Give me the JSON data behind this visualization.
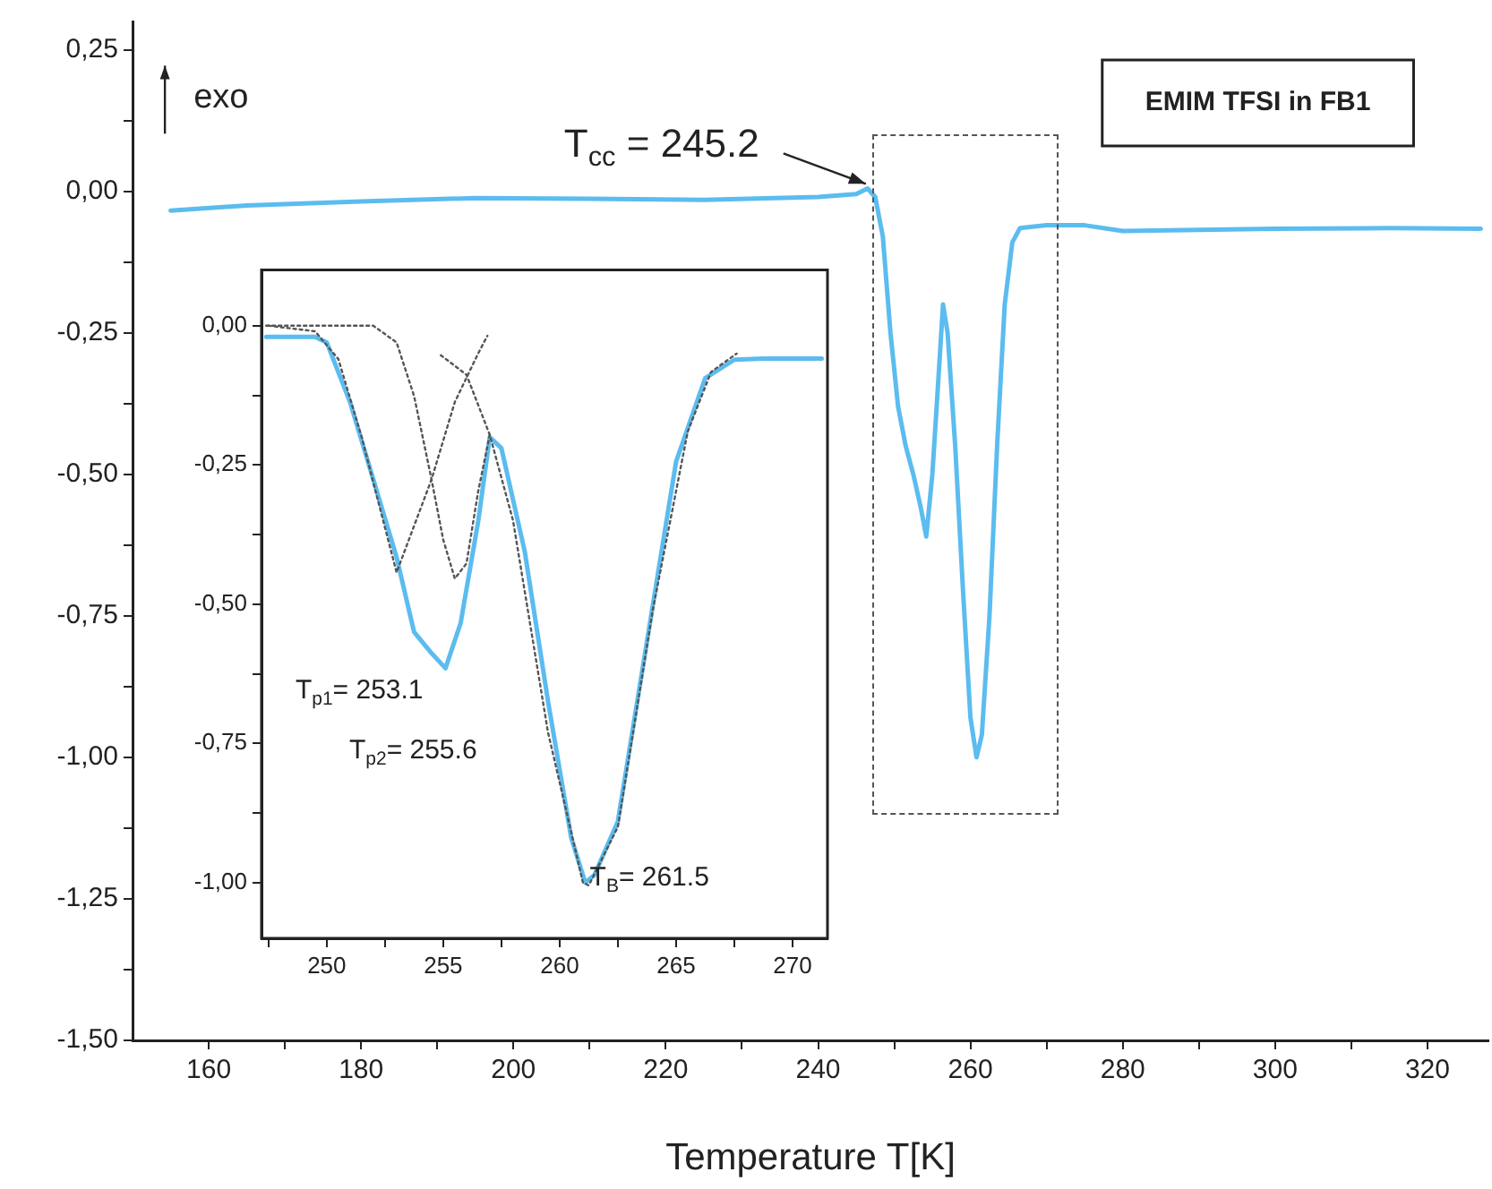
{
  "chart_data": [
    {
      "type": "line",
      "xlabel": "Temperature T[K]",
      "xlim": [
        150,
        328
      ],
      "ylim": [
        -1.5,
        0.3
      ],
      "xticks": [
        160,
        {
          "value": 170,
          "label": null
        },
        180,
        {
          "value": 190,
          "label": null
        },
        200,
        {
          "value": 210,
          "label": null
        },
        220,
        {
          "value": 230,
          "label": null
        },
        240,
        {
          "value": 250,
          "label": null
        },
        260,
        {
          "value": 270,
          "label": null
        },
        280,
        {
          "value": 290,
          "label": null
        },
        300,
        {
          "value": 310,
          "label": null
        },
        320
      ],
      "yticks": [
        {
          "value": 0.25,
          "label": "0,25"
        },
        {
          "value": 0.125,
          "label": null
        },
        {
          "value": 0,
          "label": "0,00"
        },
        {
          "value": -0.125,
          "label": null
        },
        {
          "value": -0.25,
          "label": "-0,25"
        },
        {
          "value": -0.375,
          "label": null
        },
        {
          "value": -0.5,
          "label": "-0,50"
        },
        {
          "value": -0.625,
          "label": null
        },
        {
          "value": -0.75,
          "label": "-0,75"
        },
        {
          "value": -0.875,
          "label": null
        },
        {
          "value": -1,
          "label": "-1,00"
        },
        {
          "value": -1.125,
          "label": null
        },
        {
          "value": -1.25,
          "label": "-1,25"
        },
        {
          "value": -1.375,
          "label": null
        },
        {
          "value": -1.5,
          "label": "-1,50"
        }
      ],
      "series": [
        {
          "color": "#5bbcef",
          "x": [
            155,
            165,
            180,
            195,
            210,
            225,
            240,
            245,
            246.5,
            247.5,
            248.5,
            249.5,
            250.5,
            251.5,
            252.5,
            253.5,
            254.2,
            255,
            255.8,
            256.4,
            257,
            258,
            259,
            260,
            260.8,
            261.5,
            262.5,
            263.5,
            264.5,
            265.5,
            266.5,
            270,
            275,
            280,
            290,
            300,
            315,
            327
          ],
          "values": [
            -0.034,
            -0.025,
            -0.018,
            -0.012,
            -0.013,
            -0.015,
            -0.01,
            -0.005,
            0.005,
            -0.01,
            -0.08,
            -0.25,
            -0.38,
            -0.45,
            -0.5,
            -0.56,
            -0.61,
            -0.5,
            -0.33,
            -0.2,
            -0.25,
            -0.45,
            -0.7,
            -0.93,
            -1.0,
            -0.96,
            -0.75,
            -0.45,
            -0.2,
            -0.09,
            -0.065,
            -0.06,
            -0.06,
            -0.07,
            -0.068,
            -0.066,
            -0.065,
            -0.066
          ]
        }
      ],
      "annotations": [
        "exo",
        {
          "text": "T$_{cc}$ = 245.2",
          "x": 246.5,
          "y": 0.01
        },
        "EMIM TFSI in FB1"
      ]
    },
    {
      "type": "line",
      "xlim": [
        247.2,
        271.5
      ],
      "ylim": [
        -1.1,
        0.1
      ],
      "xticks": [
        {
          "value": 247.5,
          "label": null
        },
        250,
        {
          "value": 252.5,
          "label": null
        },
        255,
        {
          "value": 257.5,
          "label": null
        },
        260,
        {
          "value": 262.5,
          "label": null
        },
        265,
        {
          "value": 267.5,
          "label": null
        },
        270
      ],
      "yticks": [
        {
          "value": 0,
          "label": "0,00"
        },
        {
          "value": -0.125,
          "label": null
        },
        {
          "value": -0.25,
          "label": "-0,25"
        },
        {
          "value": -0.375,
          "label": null
        },
        {
          "value": -0.5,
          "label": "-0,50"
        },
        {
          "value": -0.625,
          "label": null
        },
        {
          "value": -0.75,
          "label": "-0,75"
        },
        {
          "value": -0.875,
          "label": null
        },
        {
          "value": -1,
          "label": "-1,00"
        }
      ],
      "series": [
        {
          "color": "#555555",
          "line_style": "dotted",
          "x": [
            247.5,
            249.5,
            250.5,
            251.5,
            252.3,
            253,
            254.5,
            255.5,
            256.5,
            256.9
          ],
          "values": [
            0,
            -0.01,
            -0.06,
            -0.2,
            -0.33,
            -0.443,
            -0.276,
            -0.137,
            -0.05,
            -0.018
          ]
        },
        {
          "color": "#555555",
          "line_style": "dotted",
          "x": [
            247.4,
            252,
            253,
            253.75,
            254.5,
            255,
            255.5,
            256,
            256.5,
            257
          ],
          "values": [
            0,
            0,
            -0.03,
            -0.126,
            -0.276,
            -0.384,
            -0.454,
            -0.427,
            -0.298,
            -0.196
          ]
        },
        {
          "color": "#555555",
          "line_style": "dotted",
          "x": [
            254.9,
            256,
            257,
            258,
            259.5,
            261,
            261.25,
            262.5,
            264,
            265.5,
            266.5,
            267.6
          ],
          "values": [
            -0.053,
            -0.088,
            -0.196,
            -0.35,
            -0.73,
            -1.0,
            -1.005,
            -0.9,
            -0.51,
            -0.19,
            -0.083,
            -0.05
          ]
        },
        {
          "color": "#5bbcef",
          "x": [
            247.4,
            249.5,
            250,
            251,
            252,
            253,
            253.75,
            254.5,
            255.1,
            255.75,
            256.5,
            257,
            257.5,
            258.5,
            259.5,
            260.5,
            261.1,
            261.5,
            262.5,
            263.75,
            265,
            266.25,
            267.5,
            268.75,
            271.25
          ],
          "values": [
            -0.02,
            -0.02,
            -0.03,
            -0.137,
            -0.276,
            -0.416,
            -0.55,
            -0.588,
            -0.615,
            -0.534,
            -0.352,
            -0.2,
            -0.22,
            -0.405,
            -0.674,
            -0.92,
            -1.0,
            -0.986,
            -0.89,
            -0.567,
            -0.244,
            -0.094,
            -0.061,
            -0.059,
            -0.059
          ]
        }
      ],
      "annotations": [
        "T$_{p1}$= 253.1",
        "T$_{p2}$= 255.6",
        "T$_{B}$= 261.5"
      ]
    }
  ]
}
